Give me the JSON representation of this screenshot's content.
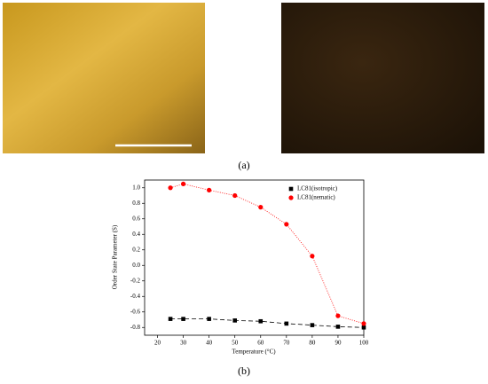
{
  "captions": {
    "a": "(a)",
    "b": "(b)"
  },
  "chart_data": {
    "type": "line",
    "x_label": "Temperature (°C)",
    "y_label": "Order State Parameter (S)",
    "x": [
      25,
      30,
      40,
      50,
      60,
      70,
      80,
      90,
      100
    ],
    "series": [
      {
        "name": "LC81(isotropic)",
        "color": "#000000",
        "marker": "square",
        "line": "dashed",
        "values": [
          -0.69,
          -0.69,
          -0.69,
          -0.71,
          -0.72,
          -0.75,
          -0.77,
          -0.79,
          -0.8
        ]
      },
      {
        "name": "LC81(nematic)",
        "color": "#ff0000",
        "marker": "circle",
        "line": "dotted",
        "values": [
          1.0,
          1.05,
          0.97,
          0.9,
          0.75,
          0.53,
          0.12,
          -0.65,
          -0.75
        ]
      }
    ],
    "xlim": [
      15,
      100
    ],
    "xticks": [
      20,
      30,
      40,
      50,
      60,
      70,
      80,
      90,
      100
    ],
    "ylim": [
      -0.9,
      1.1
    ],
    "yticks": [
      -0.8,
      -0.6,
      -0.4,
      -0.2,
      {
        "value": 0,
        "label": "0.0"
      },
      0.2,
      0.4,
      0.6,
      0.8,
      {
        "value": 1,
        "label": "1.0"
      }
    ],
    "legend": "top-right"
  }
}
